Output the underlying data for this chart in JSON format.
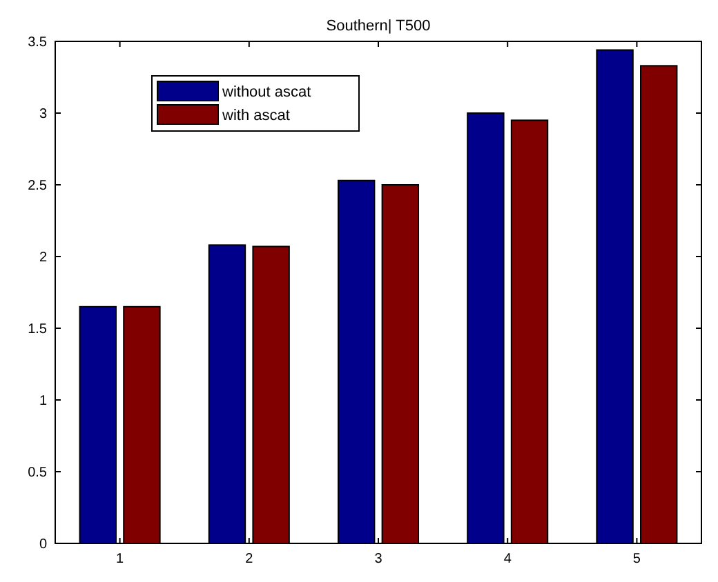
{
  "chart_data": {
    "type": "bar",
    "title": "Southern| T500",
    "categories": [
      "1",
      "2",
      "3",
      "4",
      "5"
    ],
    "series": [
      {
        "name": "without ascat",
        "color": "#00008b",
        "values": [
          1.65,
          2.08,
          2.53,
          3.0,
          3.44
        ]
      },
      {
        "name": "with ascat",
        "color": "#800000",
        "values": [
          1.65,
          2.07,
          2.5,
          2.95,
          3.33
        ]
      }
    ],
    "ylim": [
      0,
      3.5
    ],
    "yticks": [
      0,
      0.5,
      1,
      1.5,
      2,
      2.5,
      3,
      3.5
    ],
    "legend": "top left",
    "grid": false
  }
}
